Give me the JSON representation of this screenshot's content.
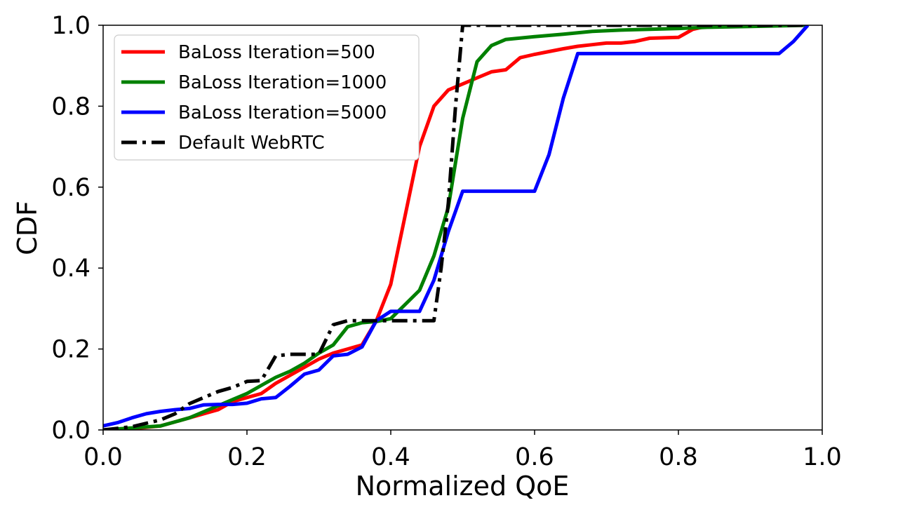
{
  "chart_data": {
    "type": "line",
    "xlabel": "Normalized QoE",
    "ylabel": "CDF",
    "xlim": [
      0.0,
      1.0
    ],
    "ylim": [
      0.0,
      1.0
    ],
    "xticks": [
      "0.0",
      "0.2",
      "0.4",
      "0.6",
      "0.8",
      "1.0"
    ],
    "yticks": [
      "0.0",
      "0.2",
      "0.4",
      "0.6",
      "0.8",
      "1.0"
    ],
    "grid": false,
    "legend_position": "upper-left",
    "series": [
      {
        "name": "BaLoss Iteration=500",
        "color": "#ff0000",
        "style": "solid",
        "points": [
          [
            0.0,
            0.0
          ],
          [
            0.04,
            0.003
          ],
          [
            0.08,
            0.01
          ],
          [
            0.1,
            0.02
          ],
          [
            0.12,
            0.03
          ],
          [
            0.14,
            0.04
          ],
          [
            0.16,
            0.05
          ],
          [
            0.18,
            0.07
          ],
          [
            0.2,
            0.08
          ],
          [
            0.22,
            0.09
          ],
          [
            0.24,
            0.115
          ],
          [
            0.26,
            0.135
          ],
          [
            0.28,
            0.155
          ],
          [
            0.3,
            0.175
          ],
          [
            0.32,
            0.19
          ],
          [
            0.34,
            0.2
          ],
          [
            0.36,
            0.21
          ],
          [
            0.38,
            0.27
          ],
          [
            0.4,
            0.36
          ],
          [
            0.42,
            0.53
          ],
          [
            0.44,
            0.7
          ],
          [
            0.46,
            0.8
          ],
          [
            0.48,
            0.84
          ],
          [
            0.5,
            0.855
          ],
          [
            0.52,
            0.87
          ],
          [
            0.54,
            0.885
          ],
          [
            0.56,
            0.89
          ],
          [
            0.58,
            0.92
          ],
          [
            0.6,
            0.928
          ],
          [
            0.62,
            0.935
          ],
          [
            0.64,
            0.942
          ],
          [
            0.66,
            0.948
          ],
          [
            0.68,
            0.952
          ],
          [
            0.7,
            0.956
          ],
          [
            0.72,
            0.956
          ],
          [
            0.74,
            0.96
          ],
          [
            0.76,
            0.968
          ],
          [
            0.78,
            0.969
          ],
          [
            0.8,
            0.97
          ],
          [
            0.82,
            0.99
          ],
          [
            0.84,
            0.998
          ],
          [
            0.9,
            0.999
          ],
          [
            0.98,
            1.0
          ]
        ]
      },
      {
        "name": "BaLoss Iteration=1000",
        "color": "#008000",
        "style": "solid",
        "points": [
          [
            0.0,
            0.0
          ],
          [
            0.04,
            0.005
          ],
          [
            0.08,
            0.01
          ],
          [
            0.1,
            0.02
          ],
          [
            0.12,
            0.03
          ],
          [
            0.14,
            0.045
          ],
          [
            0.16,
            0.06
          ],
          [
            0.18,
            0.075
          ],
          [
            0.2,
            0.09
          ],
          [
            0.22,
            0.11
          ],
          [
            0.24,
            0.13
          ],
          [
            0.26,
            0.145
          ],
          [
            0.28,
            0.165
          ],
          [
            0.3,
            0.19
          ],
          [
            0.32,
            0.21
          ],
          [
            0.34,
            0.255
          ],
          [
            0.36,
            0.265
          ],
          [
            0.38,
            0.268
          ],
          [
            0.4,
            0.275
          ],
          [
            0.42,
            0.31
          ],
          [
            0.44,
            0.345
          ],
          [
            0.46,
            0.43
          ],
          [
            0.48,
            0.55
          ],
          [
            0.5,
            0.77
          ],
          [
            0.52,
            0.91
          ],
          [
            0.54,
            0.95
          ],
          [
            0.56,
            0.965
          ],
          [
            0.6,
            0.972
          ],
          [
            0.64,
            0.978
          ],
          [
            0.68,
            0.985
          ],
          [
            0.72,
            0.988
          ],
          [
            0.76,
            0.99
          ],
          [
            0.8,
            0.992
          ],
          [
            0.84,
            0.995
          ],
          [
            0.9,
            0.997
          ],
          [
            0.98,
            1.0
          ]
        ]
      },
      {
        "name": "BaLoss Iteration=5000",
        "color": "#0000ff",
        "style": "solid",
        "points": [
          [
            0.0,
            0.01
          ],
          [
            0.02,
            0.018
          ],
          [
            0.04,
            0.03
          ],
          [
            0.06,
            0.04
          ],
          [
            0.08,
            0.046
          ],
          [
            0.1,
            0.05
          ],
          [
            0.12,
            0.053
          ],
          [
            0.14,
            0.062
          ],
          [
            0.16,
            0.063
          ],
          [
            0.18,
            0.063
          ],
          [
            0.2,
            0.066
          ],
          [
            0.22,
            0.077
          ],
          [
            0.24,
            0.08
          ],
          [
            0.26,
            0.108
          ],
          [
            0.28,
            0.138
          ],
          [
            0.3,
            0.148
          ],
          [
            0.32,
            0.183
          ],
          [
            0.34,
            0.187
          ],
          [
            0.36,
            0.205
          ],
          [
            0.38,
            0.27
          ],
          [
            0.4,
            0.293
          ],
          [
            0.42,
            0.293
          ],
          [
            0.44,
            0.293
          ],
          [
            0.46,
            0.37
          ],
          [
            0.48,
            0.49
          ],
          [
            0.5,
            0.59
          ],
          [
            0.52,
            0.59
          ],
          [
            0.6,
            0.59
          ],
          [
            0.62,
            0.68
          ],
          [
            0.64,
            0.82
          ],
          [
            0.66,
            0.93
          ],
          [
            0.94,
            0.93
          ],
          [
            0.96,
            0.96
          ],
          [
            0.98,
            1.0
          ]
        ]
      },
      {
        "name": "Default WebRTC",
        "color": "#000000",
        "style": "dashdot",
        "points": [
          [
            0.0,
            0.0
          ],
          [
            0.04,
            0.008
          ],
          [
            0.08,
            0.025
          ],
          [
            0.1,
            0.04
          ],
          [
            0.12,
            0.065
          ],
          [
            0.14,
            0.08
          ],
          [
            0.16,
            0.095
          ],
          [
            0.18,
            0.105
          ],
          [
            0.2,
            0.12
          ],
          [
            0.22,
            0.122
          ],
          [
            0.24,
            0.183
          ],
          [
            0.26,
            0.187
          ],
          [
            0.28,
            0.187
          ],
          [
            0.3,
            0.187
          ],
          [
            0.32,
            0.26
          ],
          [
            0.34,
            0.27
          ],
          [
            0.36,
            0.27
          ],
          [
            0.4,
            0.27
          ],
          [
            0.46,
            0.27
          ],
          [
            0.47,
            0.4
          ],
          [
            0.48,
            0.56
          ],
          [
            0.49,
            0.8
          ],
          [
            0.5,
            1.0
          ],
          [
            0.98,
            1.0
          ]
        ]
      }
    ]
  }
}
